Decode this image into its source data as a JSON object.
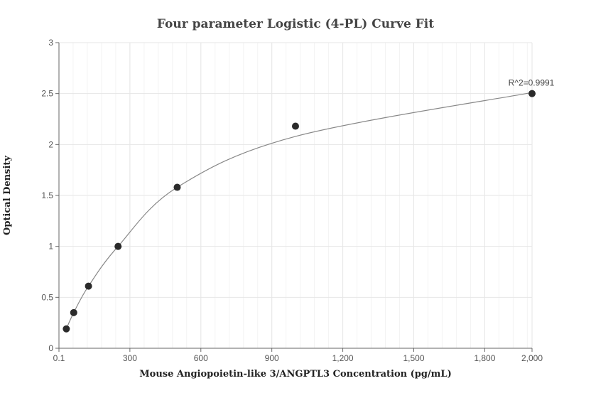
{
  "chart_data": {
    "type": "scatter",
    "title": "Four parameter Logistic (4-PL) Curve Fit",
    "xlabel": "Mouse Angiopoietin-like 3/ANGPTL3 Concentration (pg/mL)",
    "ylabel": "Optical Density",
    "xlim": [
      0.1,
      2000
    ],
    "ylim": [
      0,
      3
    ],
    "x_ticks": [
      "0.1",
      "300",
      "600",
      "900",
      "1,200",
      "1,500",
      "1,800",
      "2,000"
    ],
    "x_tick_values": [
      0.1,
      300,
      600,
      900,
      1200,
      1500,
      1800,
      2000
    ],
    "y_ticks": [
      "0",
      "0.5",
      "1",
      "1.5",
      "2",
      "2.5",
      "3"
    ],
    "y_tick_values": [
      0,
      0.5,
      1,
      1.5,
      2,
      2.5,
      3
    ],
    "grid": true,
    "points": [
      {
        "x": 31.25,
        "y": 0.19
      },
      {
        "x": 62.5,
        "y": 0.35
      },
      {
        "x": 125,
        "y": 0.61
      },
      {
        "x": 250,
        "y": 1.0
      },
      {
        "x": 500,
        "y": 1.58
      },
      {
        "x": 1000,
        "y": 2.18
      },
      {
        "x": 2000,
        "y": 2.5
      }
    ],
    "fit_curve": {
      "type": "4PL",
      "points": [
        {
          "x": 31.25,
          "y": 0.19
        },
        {
          "x": 62.5,
          "y": 0.35
        },
        {
          "x": 125,
          "y": 0.61
        },
        {
          "x": 250,
          "y": 1.0
        },
        {
          "x": 500,
          "y": 1.58
        },
        {
          "x": 1000,
          "y": 2.08
        },
        {
          "x": 2000,
          "y": 2.51
        }
      ]
    },
    "annotation": "R^2=0.9991",
    "colors": {
      "points": "#2b2b2b",
      "curve": "#888888",
      "grid": "#e6e6e6",
      "axis": "#666666"
    }
  }
}
